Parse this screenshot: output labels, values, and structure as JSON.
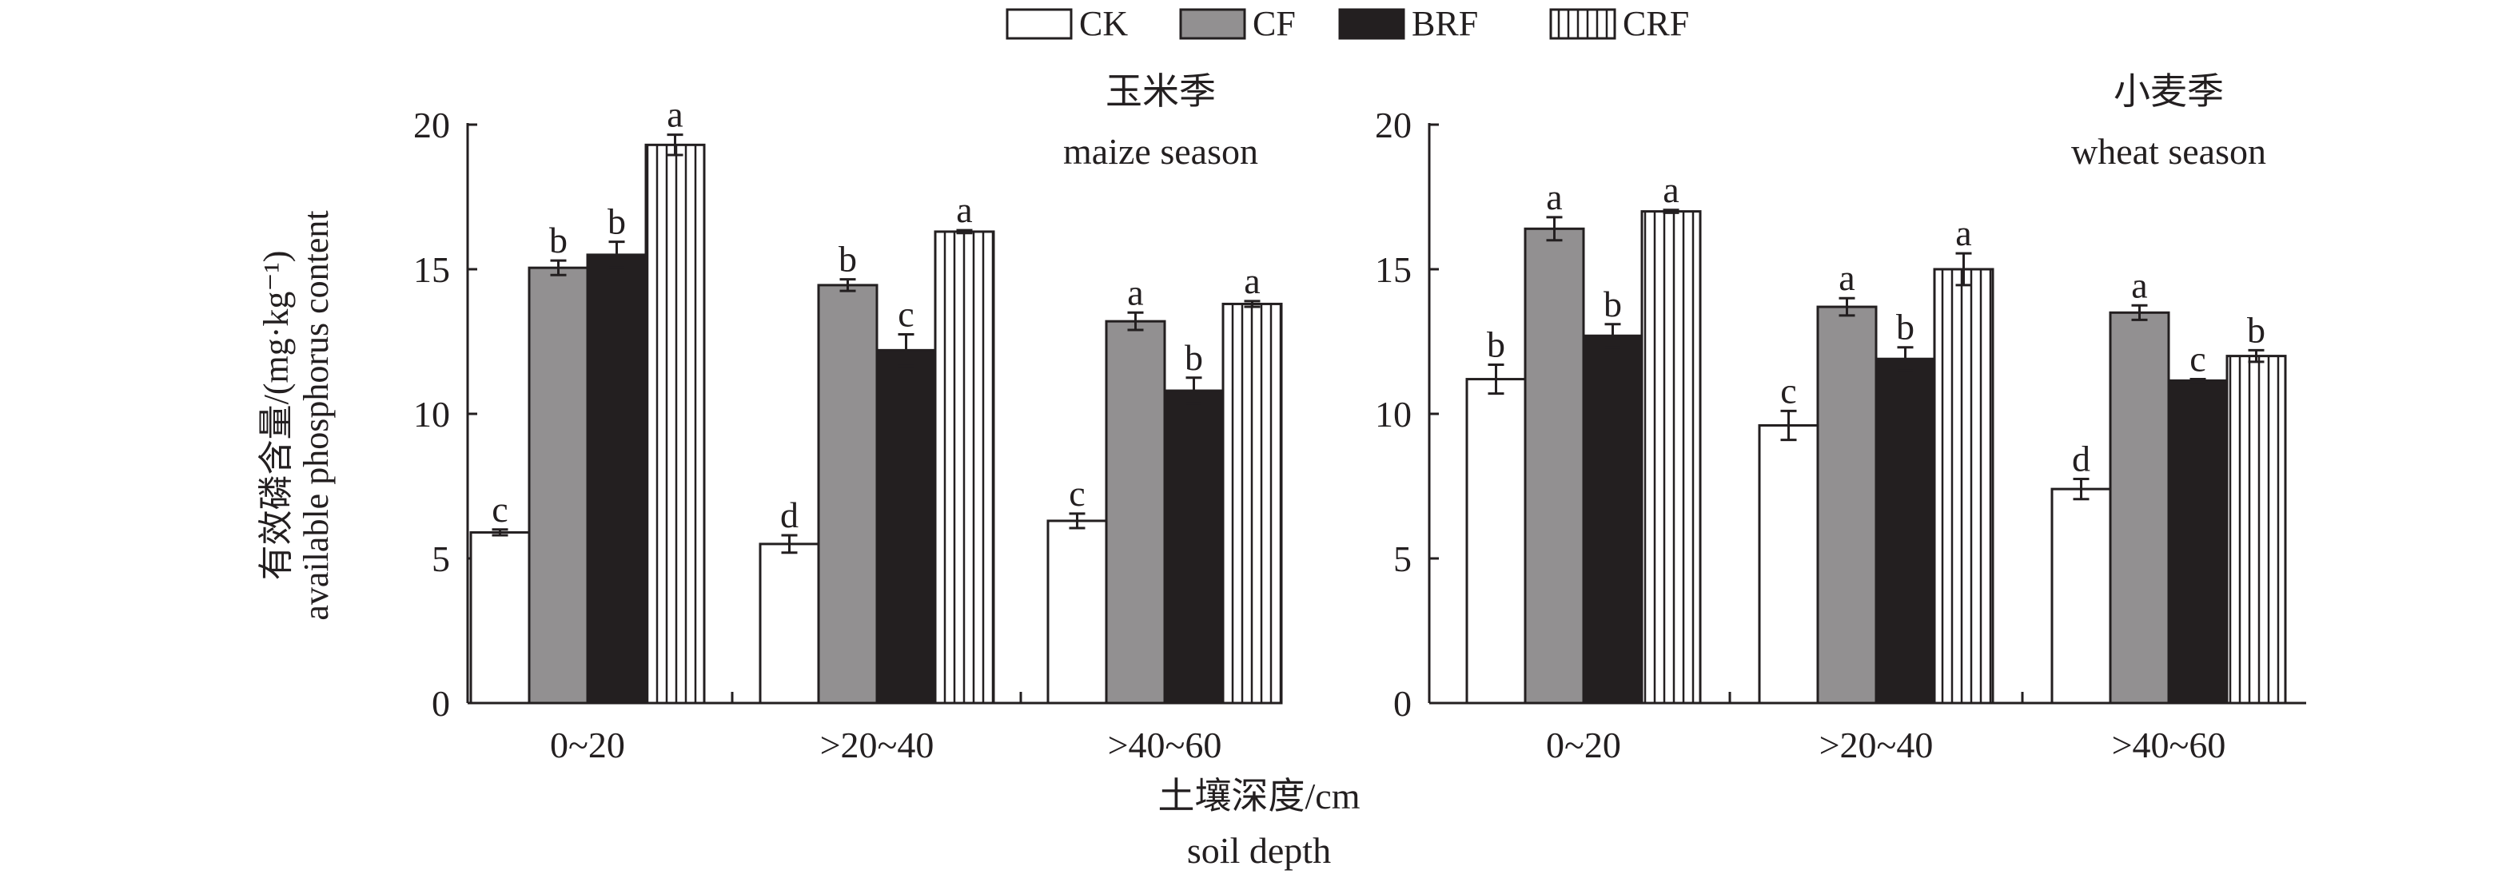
{
  "chart_data": {
    "type": "bar",
    "legend": {
      "placement": "top-center",
      "entries": [
        "CK",
        "CF",
        "BRF",
        "CRF"
      ]
    },
    "series_styles": {
      "CK": "#ffffff",
      "CF": "#929091",
      "BRF": "#231f20",
      "CRF": "vertical-stripes"
    },
    "ylabel_cn": "有效磷含量/(mg·kg⁻¹)",
    "ylabel_en": "available phosphorus content",
    "xlabel_cn": "土壤深度/cm",
    "xlabel_en": "soil depth",
    "categories": [
      "0~20",
      ">20~40",
      ">40~60"
    ],
    "ylim": [
      0,
      20
    ],
    "yticks": [
      "0",
      "5",
      "10",
      "15",
      "20"
    ],
    "panels": [
      {
        "title_cn": "玉米季",
        "title_en": "maize season",
        "series": [
          {
            "name": "CK",
            "values": [
              5.9,
              5.5,
              6.3
            ],
            "errors": [
              0.1,
              0.3,
              0.25
            ],
            "letters": [
              "c",
              "d",
              "c"
            ]
          },
          {
            "name": "CF",
            "values": [
              15.05,
              14.45,
              13.2
            ],
            "errors": [
              0.25,
              0.2,
              0.3
            ],
            "letters": [
              "b",
              "b",
              "a"
            ]
          },
          {
            "name": "BRF",
            "values": [
              15.5,
              12.2,
              10.8
            ],
            "errors": [
              0.45,
              0.55,
              0.45
            ],
            "letters": [
              "b",
              "c",
              "b"
            ]
          },
          {
            "name": "CRF",
            "values": [
              19.3,
              16.3,
              13.8
            ],
            "errors": [
              0.35,
              0.05,
              0.1
            ],
            "letters": [
              "a",
              "a",
              "a"
            ]
          }
        ]
      },
      {
        "title_cn": "小麦季",
        "title_en": "wheat season",
        "series": [
          {
            "name": "CK",
            "values": [
              11.2,
              9.6,
              7.4
            ],
            "errors": [
              0.5,
              0.5,
              0.35
            ],
            "letters": [
              "b",
              "c",
              "d"
            ]
          },
          {
            "name": "CF",
            "values": [
              16.4,
              13.7,
              13.5
            ],
            "errors": [
              0.4,
              0.3,
              0.25
            ],
            "letters": [
              "a",
              "a",
              "a"
            ]
          },
          {
            "name": "BRF",
            "values": [
              12.7,
              11.9,
              11.15
            ],
            "errors": [
              0.4,
              0.4,
              0.05
            ],
            "letters": [
              "b",
              "b",
              "c"
            ]
          },
          {
            "name": "CRF",
            "values": [
              17.0,
              15.0,
              12.0
            ],
            "errors": [
              0.05,
              0.55,
              0.2
            ],
            "letters": [
              "a",
              "a",
              "b"
            ]
          }
        ]
      }
    ]
  }
}
